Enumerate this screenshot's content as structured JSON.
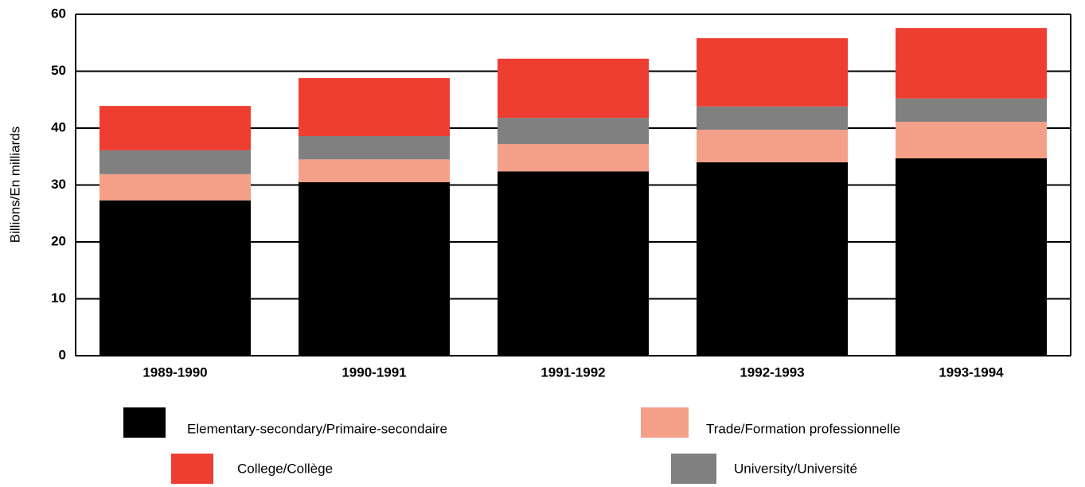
{
  "chart_data": {
    "type": "stacked_bar",
    "y_label": "Billions/En milliards",
    "categories": [
      "1989-1990",
      "1990-1991",
      "1991-1992",
      "1992-1993",
      "1993-1994"
    ],
    "series": [
      {
        "name": "Elementary-secondary/Primaire-secondaire",
        "color": "#000000",
        "values": [
          27.3,
          30.5,
          32.4,
          34.0,
          34.7
        ]
      },
      {
        "name": "Trade/Formation professionnelle",
        "color": "#f4a088",
        "values": [
          4.6,
          4.0,
          4.8,
          5.7,
          6.4
        ]
      },
      {
        "name": "University/Université",
        "color": "#808080",
        "values": [
          4.2,
          4.1,
          4.6,
          4.1,
          4.1
        ]
      },
      {
        "name": "College/Collège",
        "color": "#ee3e32",
        "values": [
          7.8,
          10.2,
          10.4,
          12.0,
          12.4
        ]
      }
    ],
    "ylim": [
      0,
      60
    ],
    "yticks": [
      0,
      10,
      20,
      30,
      40,
      50,
      60
    ],
    "grid": true
  }
}
